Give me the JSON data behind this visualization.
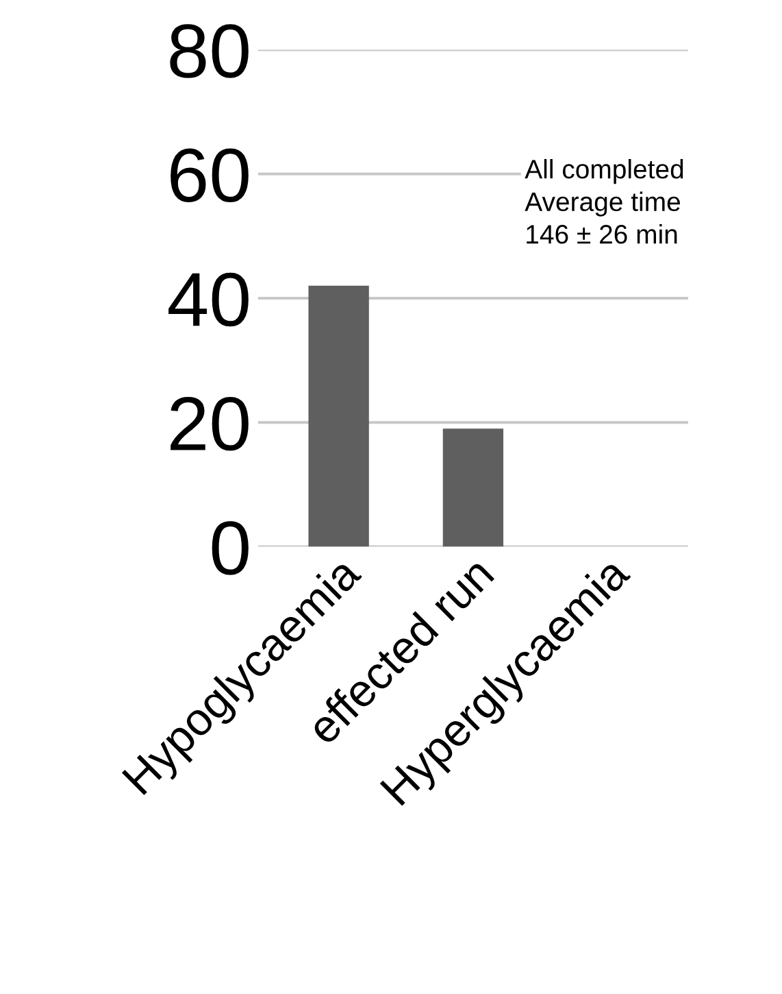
{
  "chart_data": {
    "type": "bar",
    "categories": [
      "Hypoglycaemia",
      "effected run",
      "Hyperglycaemia"
    ],
    "values": [
      42,
      19,
      null
    ],
    "color": "#5f5f5f",
    "ylim": [
      0,
      80
    ],
    "yticks": [
      0,
      20,
      40,
      60,
      80
    ],
    "grid": "y",
    "annotations": [
      "All completed\nAverage time\n146 ± 26 min"
    ]
  }
}
